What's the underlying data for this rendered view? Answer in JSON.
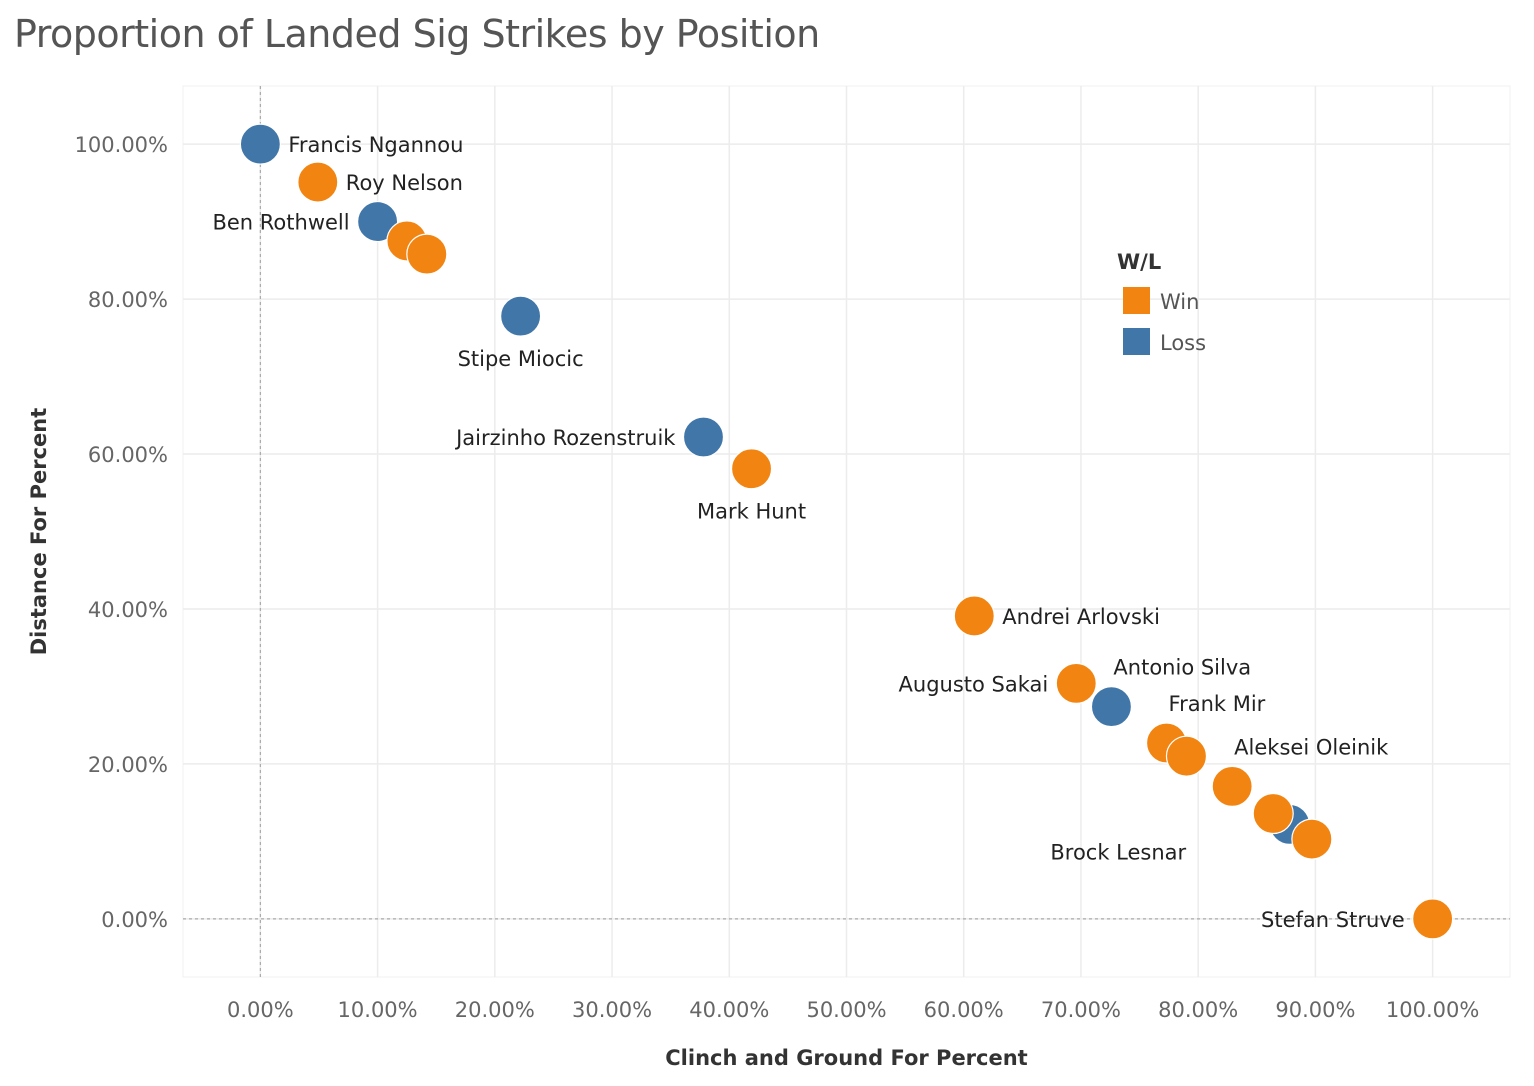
{
  "chart_data": {
    "type": "scatter",
    "title": "Proportion of Landed Sig Strikes by Position",
    "xlabel": "Clinch and Ground For Percent",
    "ylabel": "Distance For Percent",
    "xlim": [
      -0.066,
      1.066
    ],
    "ylim": [
      -0.075,
      1.075
    ],
    "x_ticks": [
      "0.00%",
      "10.00%",
      "20.00%",
      "30.00%",
      "40.00%",
      "50.00%",
      "60.00%",
      "70.00%",
      "80.00%",
      "90.00%",
      "100.00%"
    ],
    "x_tick_values": [
      0,
      0.1,
      0.2,
      0.3,
      0.4,
      0.5,
      0.6,
      0.7,
      0.8,
      0.9,
      1.0
    ],
    "y_ticks": [
      "0.00%",
      "20.00%",
      "40.00%",
      "60.00%",
      "80.00%",
      "100.00%"
    ],
    "y_tick_values": [
      0,
      0.2,
      0.4,
      0.6,
      0.8,
      1.0
    ],
    "grid": true,
    "legend": {
      "title": "W/L",
      "placement": "top-right",
      "entries": [
        {
          "name": "Win",
          "color": "#F28512"
        },
        {
          "name": "Loss",
          "color": "#4176A9"
        }
      ]
    },
    "colors": {
      "Win": "#F28512",
      "Loss": "#4176A9"
    },
    "points": [
      {
        "x": 0.0,
        "y": 1.0,
        "result": "Loss",
        "label": "Francis Ngannou",
        "anchor": "right"
      },
      {
        "x": 0.049,
        "y": 0.951,
        "result": "Win",
        "label": "Roy Nelson",
        "anchor": "right"
      },
      {
        "x": 0.1,
        "y": 0.9,
        "result": "Loss",
        "label": "Ben Rothwell",
        "anchor": "left"
      },
      {
        "x": 0.125,
        "y": 0.875,
        "result": "Win",
        "label": "",
        "anchor": "none"
      },
      {
        "x": 0.142,
        "y": 0.858,
        "result": "Win",
        "label": "",
        "anchor": "none"
      },
      {
        "x": 0.222,
        "y": 0.778,
        "result": "Loss",
        "label": "Stipe Miocic",
        "anchor": "below"
      },
      {
        "x": 0.378,
        "y": 0.622,
        "result": "Loss",
        "label": "Jairzinho Rozenstruik",
        "anchor": "left"
      },
      {
        "x": 0.419,
        "y": 0.581,
        "result": "Win",
        "label": "Mark Hunt",
        "anchor": "below"
      },
      {
        "x": 0.609,
        "y": 0.391,
        "result": "Win",
        "label": "Andrei Arlovski",
        "anchor": "right"
      },
      {
        "x": 0.696,
        "y": 0.304,
        "result": "Win",
        "label": "Augusto Sakai",
        "anchor": "left"
      },
      {
        "x": 0.726,
        "y": 0.274,
        "result": "Loss",
        "label": "Antonio Silva",
        "anchor": "above-right"
      },
      {
        "x": 0.773,
        "y": 0.227,
        "result": "Win",
        "label": "Frank Mir",
        "anchor": "above-right"
      },
      {
        "x": 0.79,
        "y": 0.21,
        "result": "Win",
        "label": "",
        "anchor": "none"
      },
      {
        "x": 0.829,
        "y": 0.171,
        "result": "Win",
        "label": "Aleksei Oleinik",
        "anchor": "above-right"
      },
      {
        "x": 0.878,
        "y": 0.122,
        "result": "Loss",
        "label": "",
        "anchor": "none"
      },
      {
        "x": 0.864,
        "y": 0.136,
        "result": "Win",
        "label": "Brock Lesnar",
        "anchor": "below-left"
      },
      {
        "x": 0.897,
        "y": 0.103,
        "result": "Win",
        "label": "",
        "anchor": "none"
      },
      {
        "x": 1.0,
        "y": 0.0,
        "result": "Win",
        "label": "Stefan Struve",
        "anchor": "left"
      }
    ]
  }
}
